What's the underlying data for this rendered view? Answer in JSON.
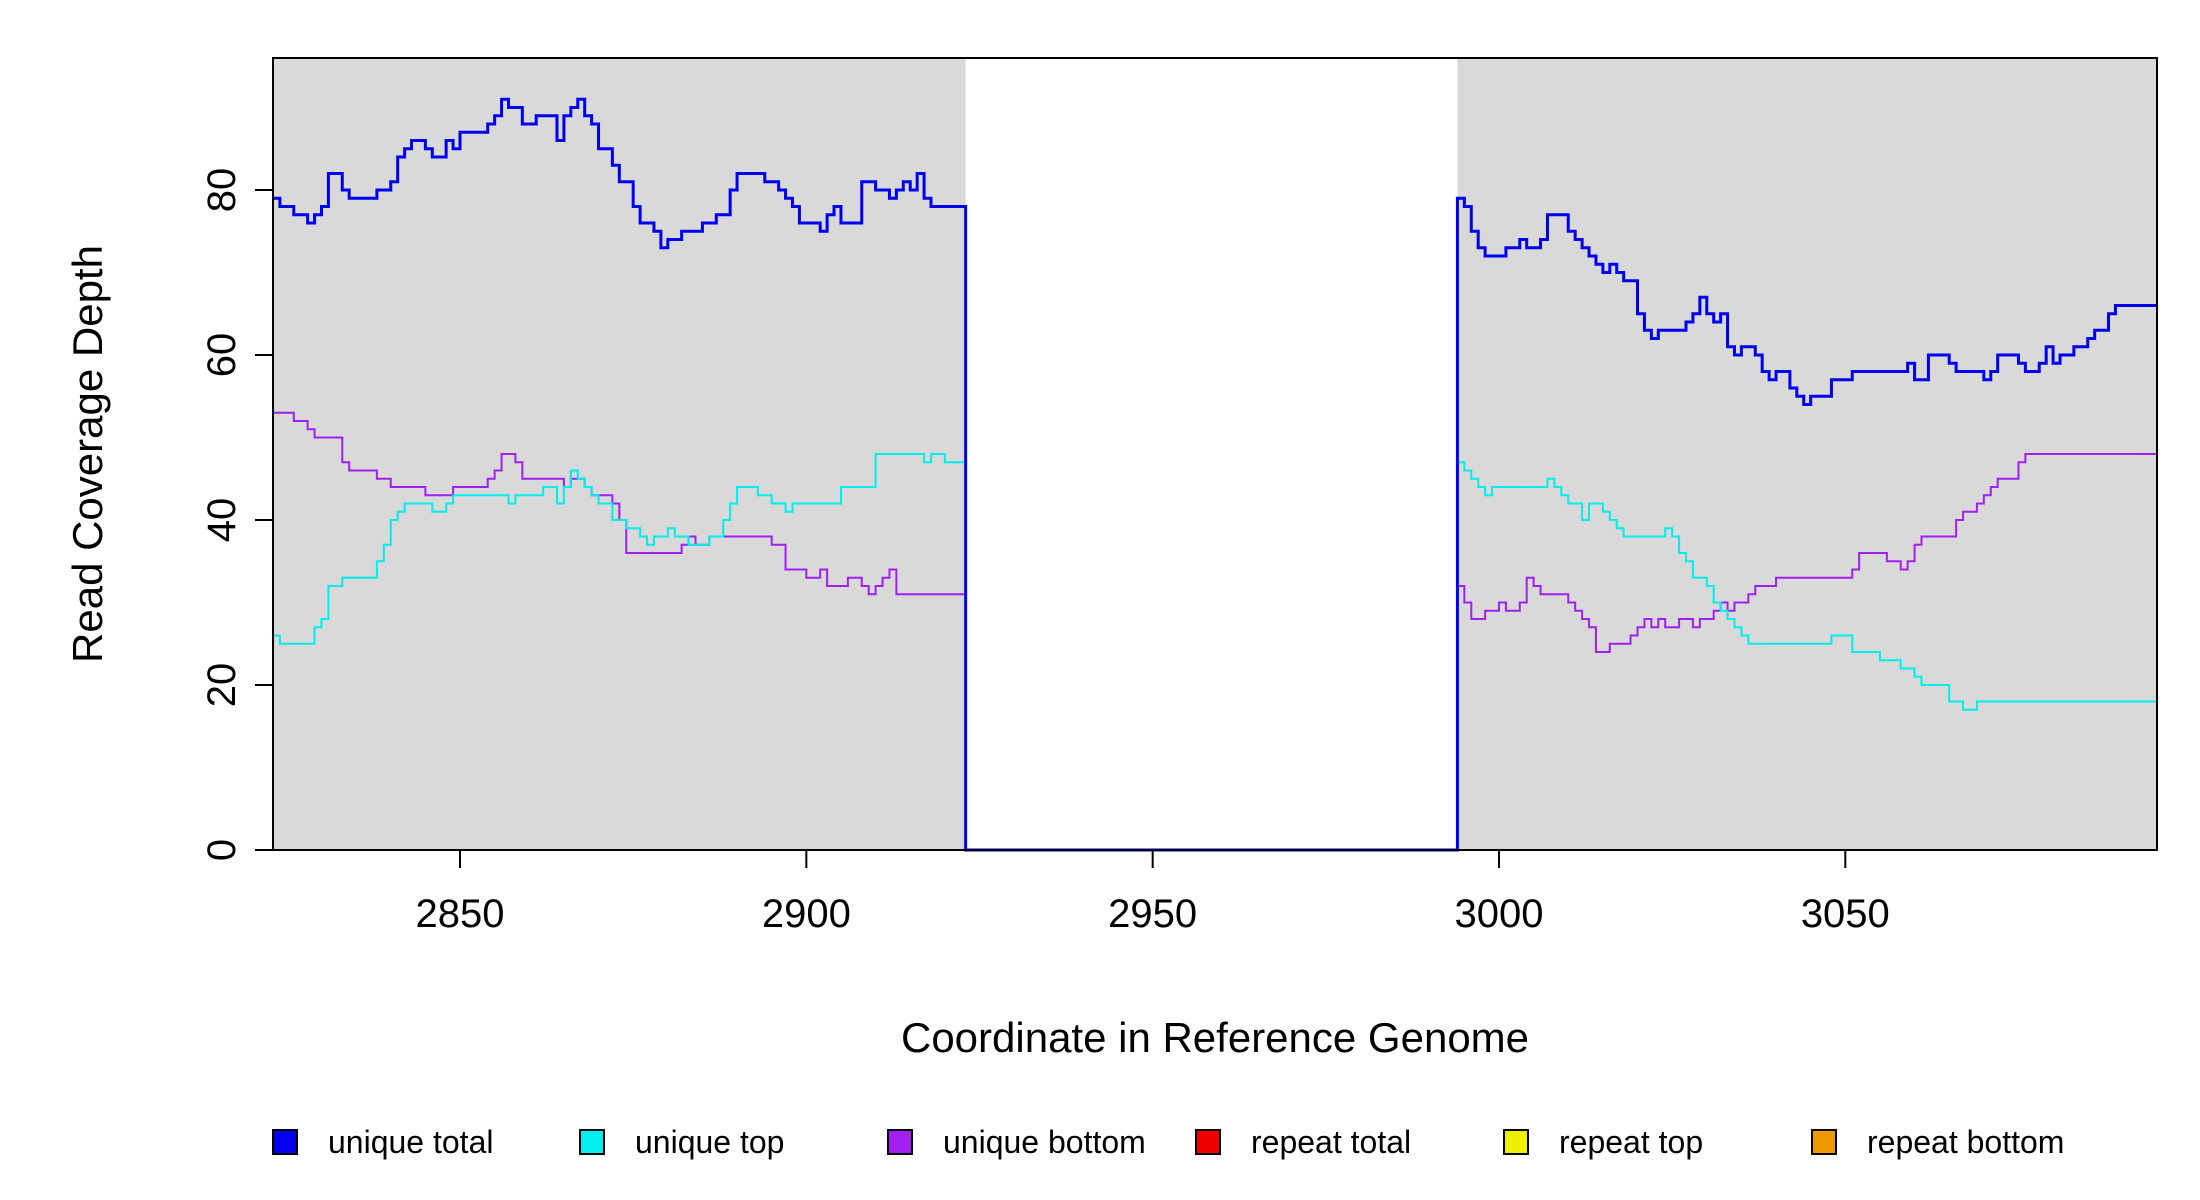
{
  "chart_data": {
    "type": "line",
    "xlabel": "Coordinate in Reference Genome",
    "ylabel": "Read Coverage Depth",
    "xlim": [
      2823,
      3095
    ],
    "ylim": [
      0,
      96
    ],
    "x_ticks": [
      2850,
      2900,
      2950,
      3000,
      3050
    ],
    "y_ticks": [
      0,
      20,
      40,
      60,
      80
    ],
    "shaded_regions": [
      {
        "x_start": 2823,
        "x_end": 2923,
        "color": "#d9d9d9"
      },
      {
        "x_start": 2994,
        "x_end": 3095,
        "color": "#d9d9d9"
      }
    ],
    "legend_position": "bottom",
    "series": [
      {
        "name": "unique total",
        "color": "#0000ee",
        "stroke": 3,
        "points": [
          [
            2823,
            79
          ],
          [
            2824,
            78
          ],
          [
            2826,
            77
          ],
          [
            2828,
            76
          ],
          [
            2829,
            77
          ],
          [
            2830,
            78
          ],
          [
            2831,
            82
          ],
          [
            2833,
            80
          ],
          [
            2834,
            79
          ],
          [
            2838,
            80
          ],
          [
            2840,
            81
          ],
          [
            2841,
            84
          ],
          [
            2842,
            85
          ],
          [
            2843,
            86
          ],
          [
            2845,
            85
          ],
          [
            2846,
            84
          ],
          [
            2848,
            86
          ],
          [
            2849,
            85
          ],
          [
            2850,
            87
          ],
          [
            2854,
            88
          ],
          [
            2855,
            89
          ],
          [
            2856,
            91
          ],
          [
            2857,
            90
          ],
          [
            2859,
            88
          ],
          [
            2861,
            89
          ],
          [
            2864,
            86
          ],
          [
            2865,
            89
          ],
          [
            2866,
            90
          ],
          [
            2867,
            91
          ],
          [
            2868,
            89
          ],
          [
            2869,
            88
          ],
          [
            2870,
            85
          ],
          [
            2872,
            83
          ],
          [
            2873,
            81
          ],
          [
            2875,
            78
          ],
          [
            2876,
            76
          ],
          [
            2878,
            75
          ],
          [
            2879,
            73
          ],
          [
            2880,
            74
          ],
          [
            2882,
            75
          ],
          [
            2885,
            76
          ],
          [
            2887,
            77
          ],
          [
            2889,
            80
          ],
          [
            2890,
            82
          ],
          [
            2894,
            81
          ],
          [
            2896,
            80
          ],
          [
            2897,
            79
          ],
          [
            2898,
            78
          ],
          [
            2899,
            76
          ],
          [
            2902,
            75
          ],
          [
            2903,
            77
          ],
          [
            2904,
            78
          ],
          [
            2905,
            76
          ],
          [
            2908,
            81
          ],
          [
            2910,
            80
          ],
          [
            2912,
            79
          ],
          [
            2913,
            80
          ],
          [
            2914,
            81
          ],
          [
            2915,
            80
          ],
          [
            2916,
            82
          ],
          [
            2917,
            79
          ],
          [
            2918,
            78
          ],
          [
            2919,
            78
          ]
        ],
        "points_right": [
          [
            2994,
            79
          ],
          [
            2995,
            78
          ],
          [
            2996,
            75
          ],
          [
            2997,
            73
          ],
          [
            2998,
            72
          ],
          [
            3001,
            73
          ],
          [
            3003,
            74
          ],
          [
            3004,
            73
          ],
          [
            3006,
            74
          ],
          [
            3007,
            77
          ],
          [
            3010,
            75
          ],
          [
            3011,
            74
          ],
          [
            3012,
            73
          ],
          [
            3013,
            72
          ],
          [
            3014,
            71
          ],
          [
            3015,
            70
          ],
          [
            3016,
            71
          ],
          [
            3017,
            70
          ],
          [
            3018,
            69
          ],
          [
            3020,
            65
          ],
          [
            3021,
            63
          ],
          [
            3022,
            62
          ],
          [
            3023,
            63
          ],
          [
            3027,
            64
          ],
          [
            3028,
            65
          ],
          [
            3029,
            67
          ],
          [
            3030,
            65
          ],
          [
            3031,
            64
          ],
          [
            3032,
            65
          ],
          [
            3033,
            61
          ],
          [
            3034,
            60
          ],
          [
            3035,
            61
          ],
          [
            3037,
            60
          ],
          [
            3038,
            58
          ],
          [
            3039,
            57
          ],
          [
            3040,
            58
          ],
          [
            3042,
            56
          ],
          [
            3043,
            55
          ],
          [
            3044,
            54
          ],
          [
            3045,
            55
          ],
          [
            3048,
            57
          ],
          [
            3051,
            58
          ],
          [
            3059,
            59
          ],
          [
            3060,
            57
          ],
          [
            3062,
            60
          ],
          [
            3065,
            59
          ],
          [
            3066,
            58
          ],
          [
            3070,
            57
          ],
          [
            3071,
            58
          ],
          [
            3072,
            60
          ],
          [
            3075,
            59
          ],
          [
            3076,
            58
          ],
          [
            3078,
            59
          ],
          [
            3079,
            61
          ],
          [
            3080,
            59
          ],
          [
            3081,
            60
          ],
          [
            3083,
            61
          ],
          [
            3085,
            62
          ],
          [
            3086,
            63
          ],
          [
            3088,
            65
          ],
          [
            3089,
            66
          ]
        ],
        "gap_end": [
          2923,
          2994
        ]
      },
      {
        "name": "unique top",
        "color": "#00eeee",
        "stroke": 2,
        "points": [
          [
            2823,
            26
          ],
          [
            2824,
            25
          ],
          [
            2829,
            27
          ],
          [
            2830,
            28
          ],
          [
            2831,
            32
          ],
          [
            2833,
            33
          ],
          [
            2838,
            35
          ],
          [
            2839,
            37
          ],
          [
            2840,
            40
          ],
          [
            2841,
            41
          ],
          [
            2842,
            42
          ],
          [
            2846,
            41
          ],
          [
            2848,
            42
          ],
          [
            2849,
            43
          ],
          [
            2854,
            43
          ],
          [
            2855,
            43
          ],
          [
            2857,
            42
          ],
          [
            2858,
            43
          ],
          [
            2862,
            44
          ],
          [
            2864,
            42
          ],
          [
            2865,
            44
          ],
          [
            2866,
            46
          ],
          [
            2867,
            45
          ],
          [
            2868,
            44
          ],
          [
            2869,
            43
          ],
          [
            2870,
            42
          ],
          [
            2872,
            40
          ],
          [
            2874,
            39
          ],
          [
            2876,
            38
          ],
          [
            2877,
            37
          ],
          [
            2878,
            38
          ],
          [
            2880,
            39
          ],
          [
            2881,
            38
          ],
          [
            2883,
            37
          ],
          [
            2886,
            38
          ],
          [
            2888,
            40
          ],
          [
            2889,
            42
          ],
          [
            2890,
            44
          ],
          [
            2893,
            43
          ],
          [
            2895,
            42
          ],
          [
            2897,
            41
          ],
          [
            2898,
            42
          ],
          [
            2905,
            44
          ],
          [
            2910,
            48
          ],
          [
            2917,
            47
          ],
          [
            2918,
            48
          ],
          [
            2920,
            47
          ]
        ],
        "points_right": [
          [
            2994,
            47
          ],
          [
            2995,
            46
          ],
          [
            2996,
            45
          ],
          [
            2997,
            44
          ],
          [
            2998,
            43
          ],
          [
            2999,
            44
          ],
          [
            3007,
            45
          ],
          [
            3008,
            44
          ],
          [
            3009,
            43
          ],
          [
            3010,
            42
          ],
          [
            3012,
            40
          ],
          [
            3013,
            42
          ],
          [
            3015,
            41
          ],
          [
            3016,
            40
          ],
          [
            3017,
            39
          ],
          [
            3018,
            38
          ],
          [
            3024,
            39
          ],
          [
            3025,
            38
          ],
          [
            3026,
            36
          ],
          [
            3027,
            35
          ],
          [
            3028,
            33
          ],
          [
            3030,
            32
          ],
          [
            3031,
            30
          ],
          [
            3032,
            29
          ],
          [
            3033,
            28
          ],
          [
            3034,
            27
          ],
          [
            3035,
            26
          ],
          [
            3036,
            25
          ],
          [
            3048,
            26
          ],
          [
            3051,
            24
          ],
          [
            3055,
            23
          ],
          [
            3058,
            22
          ],
          [
            3060,
            21
          ],
          [
            3061,
            20
          ],
          [
            3065,
            18
          ],
          [
            3067,
            17
          ],
          [
            3069,
            18
          ]
        ],
        "gap_end": [
          2923,
          2994
        ]
      },
      {
        "name": "unique bottom",
        "color": "#a020f0",
        "stroke": 2,
        "points": [
          [
            2823,
            53
          ],
          [
            2826,
            52
          ],
          [
            2828,
            51
          ],
          [
            2829,
            50
          ],
          [
            2833,
            47
          ],
          [
            2834,
            46
          ],
          [
            2838,
            45
          ],
          [
            2840,
            44
          ],
          [
            2845,
            43
          ],
          [
            2849,
            44
          ],
          [
            2854,
            45
          ],
          [
            2855,
            46
          ],
          [
            2856,
            48
          ],
          [
            2858,
            47
          ],
          [
            2859,
            45
          ],
          [
            2863,
            45
          ],
          [
            2865,
            44
          ],
          [
            2866,
            45
          ],
          [
            2868,
            44
          ],
          [
            2869,
            43
          ],
          [
            2871,
            43
          ],
          [
            2872,
            42
          ],
          [
            2873,
            40
          ],
          [
            2874,
            36
          ],
          [
            2882,
            37
          ],
          [
            2883,
            38
          ],
          [
            2884,
            37
          ],
          [
            2886,
            38
          ],
          [
            2895,
            37
          ],
          [
            2897,
            34
          ],
          [
            2900,
            33
          ],
          [
            2902,
            34
          ],
          [
            2903,
            32
          ],
          [
            2906,
            33
          ],
          [
            2908,
            32
          ],
          [
            2909,
            31
          ],
          [
            2910,
            32
          ],
          [
            2911,
            33
          ],
          [
            2912,
            34
          ],
          [
            2913,
            31
          ]
        ],
        "points_right": [
          [
            2994,
            32
          ],
          [
            2995,
            30
          ],
          [
            2996,
            28
          ],
          [
            2998,
            29
          ],
          [
            3000,
            30
          ],
          [
            3001,
            29
          ],
          [
            3003,
            30
          ],
          [
            3004,
            33
          ],
          [
            3005,
            32
          ],
          [
            3006,
            31
          ],
          [
            3010,
            30
          ],
          [
            3011,
            29
          ],
          [
            3012,
            28
          ],
          [
            3013,
            27
          ],
          [
            3014,
            24
          ],
          [
            3016,
            25
          ],
          [
            3019,
            26
          ],
          [
            3020,
            27
          ],
          [
            3021,
            28
          ],
          [
            3022,
            27
          ],
          [
            3023,
            28
          ],
          [
            3024,
            27
          ],
          [
            3026,
            28
          ],
          [
            3028,
            27
          ],
          [
            3029,
            28
          ],
          [
            3031,
            29
          ],
          [
            3032,
            30
          ],
          [
            3033,
            29
          ],
          [
            3034,
            30
          ],
          [
            3036,
            31
          ],
          [
            3037,
            32
          ],
          [
            3040,
            33
          ],
          [
            3051,
            34
          ],
          [
            3052,
            36
          ],
          [
            3056,
            35
          ],
          [
            3058,
            34
          ],
          [
            3059,
            35
          ],
          [
            3060,
            37
          ],
          [
            3061,
            38
          ],
          [
            3066,
            40
          ],
          [
            3067,
            41
          ],
          [
            3069,
            42
          ],
          [
            3070,
            43
          ],
          [
            3071,
            44
          ],
          [
            3072,
            45
          ],
          [
            3075,
            47
          ],
          [
            3076,
            48
          ]
        ],
        "gap_end": [
          2923,
          2994
        ]
      },
      {
        "name": "repeat total",
        "color": "#ee0000",
        "stroke": 2,
        "points": [
          [
            2823,
            0
          ],
          [
            3095,
            0
          ]
        ]
      },
      {
        "name": "repeat top",
        "color": "#eeee00",
        "stroke": 2,
        "points": [
          [
            2823,
            0
          ],
          [
            3095,
            0
          ]
        ]
      },
      {
        "name": "repeat bottom",
        "color": "#ee9a00",
        "stroke": 2,
        "points": [
          [
            2823,
            0
          ],
          [
            3095,
            0
          ]
        ]
      }
    ]
  }
}
